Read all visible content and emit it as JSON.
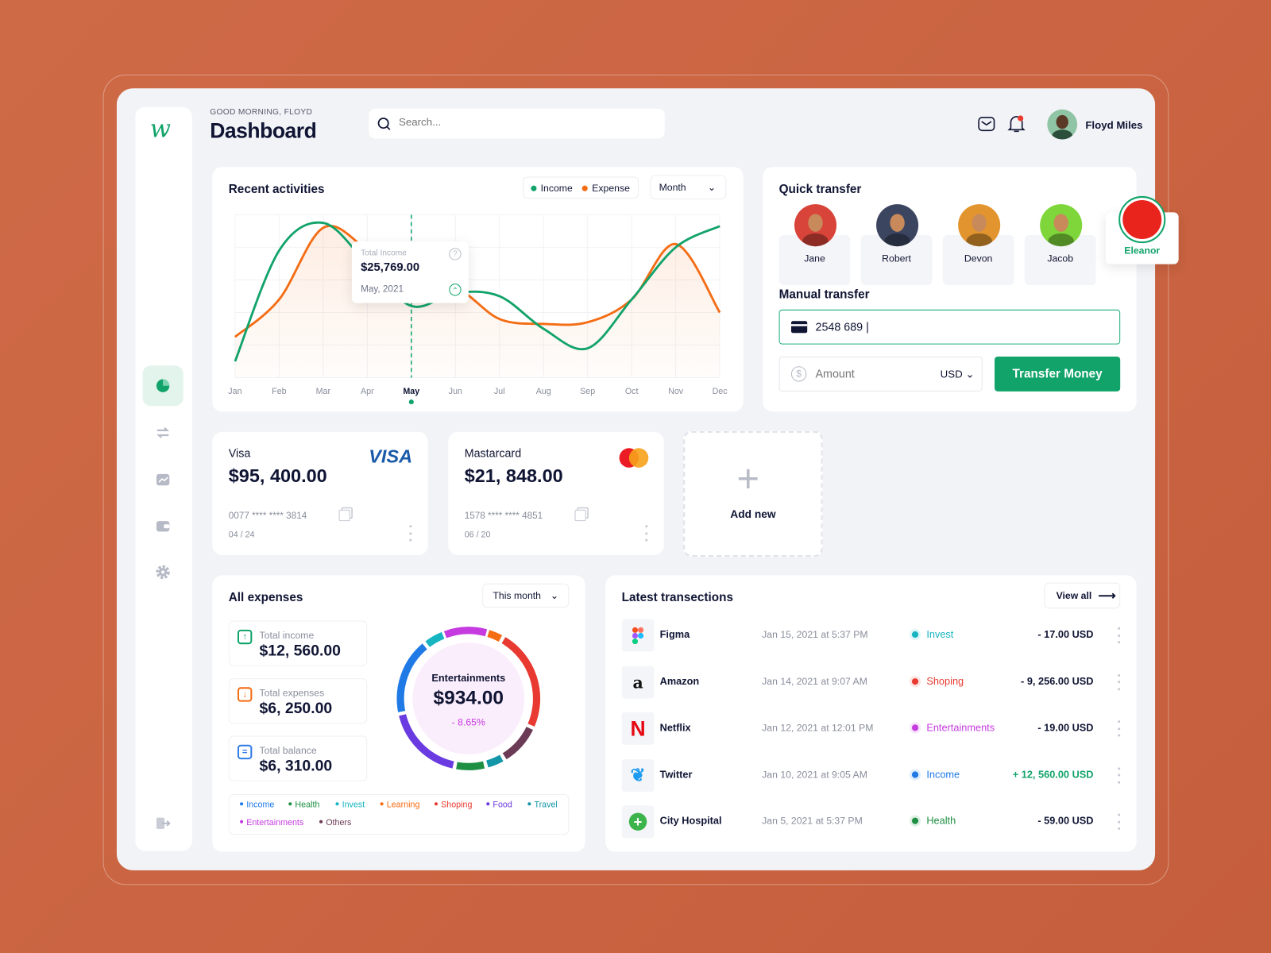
{
  "header": {
    "greeting": "GOOD MORNING, FLOYD",
    "title": "Dashboard",
    "search_placeholder": "Search...",
    "user_name": "Floyd Miles"
  },
  "brand": {
    "logo_text": "w",
    "accent": "#11a36a"
  },
  "sidebar": {
    "items": [
      {
        "icon": "pie-chart-icon",
        "active": true
      },
      {
        "icon": "transfer-icon"
      },
      {
        "icon": "analytics-icon"
      },
      {
        "icon": "wallet-icon"
      },
      {
        "icon": "settings-icon"
      }
    ],
    "logout_icon": "logout-icon"
  },
  "recent": {
    "title": "Recent activities",
    "legend": [
      {
        "label": "Income",
        "color": "#11a36a"
      },
      {
        "label": "Expense",
        "color": "#f46c14"
      }
    ],
    "period": "Month",
    "tooltip": {
      "label": "Total Income",
      "value": "$25,769.00",
      "date": "May, 2021"
    }
  },
  "chart_data": {
    "type": "line",
    "categories": [
      "Jan",
      "Feb",
      "Mar",
      "Apr",
      "May",
      "Jun",
      "Jul",
      "Aug",
      "Sep",
      "Oct",
      "Nov",
      "Dec"
    ],
    "highlight": "May",
    "ylim": [
      0,
      100
    ],
    "grid": true,
    "series": [
      {
        "name": "Income",
        "color": "#11a36a",
        "values": [
          10,
          78,
          95,
          70,
          44,
          52,
          50,
          30,
          18,
          48,
          80,
          93
        ]
      },
      {
        "name": "Expense",
        "color": "#f46c14",
        "values": [
          25,
          48,
          92,
          78,
          52,
          55,
          36,
          33,
          34,
          48,
          82,
          40
        ]
      }
    ]
  },
  "quick": {
    "title": "Quick transfer",
    "contacts": [
      {
        "name": "Jane",
        "bg": "#d8443a"
      },
      {
        "name": "Robert",
        "bg": "#3b4560"
      },
      {
        "name": "Devon",
        "bg": "#e2952e"
      },
      {
        "name": "Jacob",
        "bg": "#7ed63a"
      },
      {
        "name": "Eleanor",
        "bg": "#e8241c",
        "selected": true
      }
    ],
    "manual_title": "Manual transfer",
    "card_number": "2548 689 |",
    "amount_placeholder": "Amount",
    "currency": "USD",
    "button": "Transfer Money"
  },
  "cards": [
    {
      "name": "Visa",
      "balance": "$95, 400.00",
      "number": "0077 **** **** 3814",
      "expiry": "04 / 24",
      "brand": "VISA"
    },
    {
      "name": "Mastarcard",
      "balance": "$21, 848.00",
      "number": "1578 **** **** 4851",
      "expiry": "06 / 20"
    }
  ],
  "add_new": "Add new",
  "expenses": {
    "title": "All expenses",
    "period": "This month",
    "stats": [
      {
        "label": "Total income",
        "value": "$12, 560.00",
        "color": "#11a36a",
        "icon": "arrow-up-icon"
      },
      {
        "label": "Total expenses",
        "value": "$6, 250.00",
        "color": "#f46c14",
        "icon": "arrow-down-icon"
      },
      {
        "label": "Total balance",
        "value": "$6, 310.00",
        "color": "#2f7be8",
        "icon": "equals-icon"
      }
    ],
    "donut": {
      "label": "Entertainments",
      "value": "$934.00",
      "change": "- 8.65%"
    },
    "legend": [
      {
        "label": "Income",
        "color": "#1f7ae6"
      },
      {
        "label": "Health",
        "color": "#1f8f44"
      },
      {
        "label": "Invest",
        "color": "#17b5c2"
      },
      {
        "label": "Learning",
        "color": "#f46c14"
      },
      {
        "label": "Shoping",
        "color": "#e83a30"
      },
      {
        "label": "Food",
        "color": "#6a3be0"
      },
      {
        "label": "Travel",
        "color": "#1396a8"
      },
      {
        "label": "Entertainments",
        "color": "#c53be0"
      },
      {
        "label": "Others",
        "color": "#6b3a55"
      }
    ]
  },
  "transactions": {
    "title": "Latest transections",
    "view_all": "View all",
    "rows": [
      {
        "name": "Figma",
        "date": "Jan 15, 2021 at 5:37 PM",
        "category": "Invest",
        "cat_color": "#17b5c2",
        "amount": "- 17.00 USD",
        "positive": false
      },
      {
        "name": "Amazon",
        "date": "Jan 14, 2021 at 9:07 AM",
        "category": "Shoping",
        "cat_color": "#e83a30",
        "amount": "- 9, 256.00 USD",
        "positive": false
      },
      {
        "name": "Netflix",
        "date": "Jan 12, 2021 at 12:01 PM",
        "category": "Entertainments",
        "cat_color": "#c53be0",
        "amount": "- 19.00 USD",
        "positive": false
      },
      {
        "name": "Twitter",
        "date": "Jan 10, 2021 at 9:05 AM",
        "category": "Income",
        "cat_color": "#1f7ae6",
        "amount": "+ 12, 560.00 USD",
        "positive": true
      },
      {
        "name": "City Hospital",
        "date": "Jan 5, 2021 at 5:37 PM",
        "category": "Health",
        "cat_color": "#1f8f44",
        "amount": "- 59.00 USD",
        "positive": false
      }
    ]
  }
}
